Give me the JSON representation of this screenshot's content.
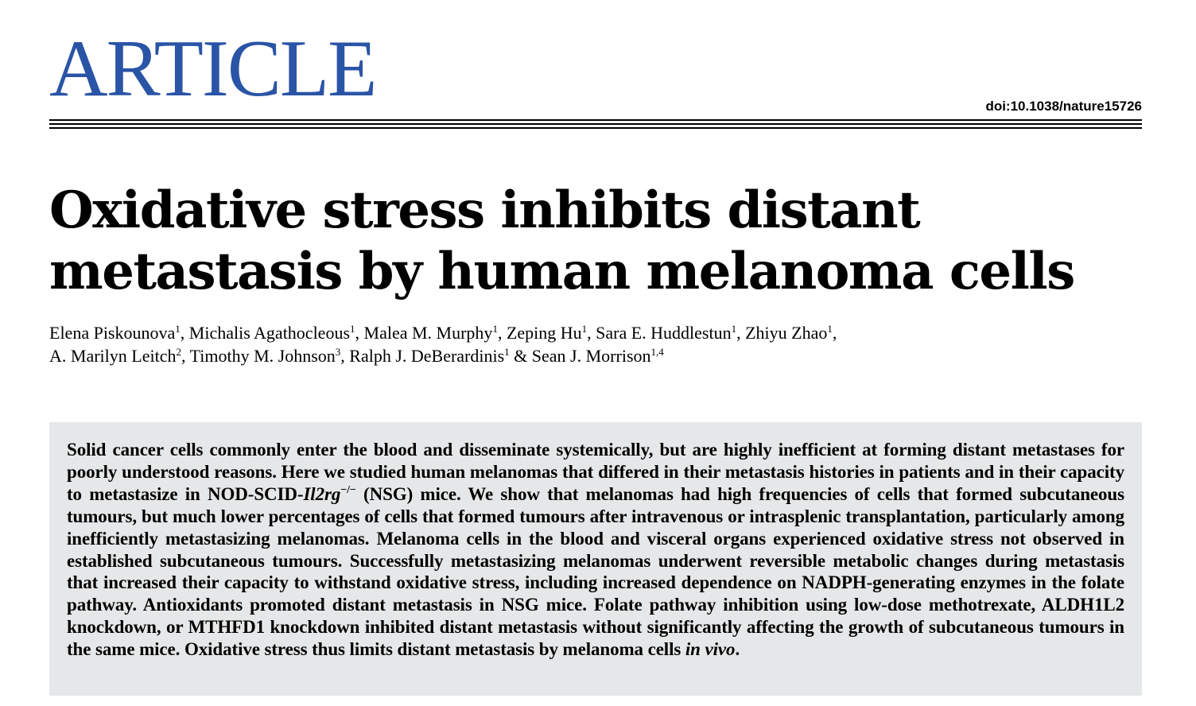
{
  "header": {
    "masthead": "ARTICLE",
    "doi": "doi:10.1038/nature15726"
  },
  "title": "Oxidative stress inhibits distant metastasis by human melanoma cells",
  "authors": [
    {
      "name": "Elena Piskounova",
      "aff": "1",
      "sep": ", "
    },
    {
      "name": "Michalis Agathocleous",
      "aff": "1",
      "sep": ", "
    },
    {
      "name": "Malea M. Murphy",
      "aff": "1",
      "sep": ", "
    },
    {
      "name": "Zeping Hu",
      "aff": "1",
      "sep": ", "
    },
    {
      "name": "Sara E. Huddlestun",
      "aff": "1",
      "sep": ", "
    },
    {
      "name": "Zhiyu Zhao",
      "aff": "1",
      "sep": ","
    },
    {
      "name": "A. Marilyn Leitch",
      "aff": "2",
      "sep": ", "
    },
    {
      "name": "Timothy M. Johnson",
      "aff": "3",
      "sep": ", "
    },
    {
      "name": "Ralph J. DeBerardinis",
      "aff": "1",
      "sep": " & "
    },
    {
      "name": "Sean J. Morrison",
      "aff": "1,4",
      "sep": ""
    }
  ],
  "abstract": {
    "part1": "Solid cancer cells commonly enter the blood and disseminate systemically, but are highly inefficient at forming distant metastases for poorly understood reasons. Here we studied human melanomas that differed in their metastasis histories in patients and in their capacity to metastasize in NOD-SCID-",
    "gene": "Il2rg",
    "gene_sup": "−/−",
    "part2": " (NSG) mice. We show that melanomas had high frequencies of cells that formed subcutaneous tumours, but much lower percentages of cells that formed tumours after intravenous or intrasplenic transplantation, particularly among inefficiently metastasizing melanomas. Melanoma cells in the blood and visceral organs experienced oxidative stress not observed in established subcutaneous tumours. Successfully metastasizing melanomas underwent reversible metabolic changes during metastasis that increased their capacity to withstand oxidative stress, including increased dependence on NADPH-generating enzymes in the folate pathway. Antioxidants promoted distant metastasis in NSG mice. Folate pathway inhibition using low-dose methotrexate, ALDH1L2 knockdown, or MTHFD1 knockdown inhibited distant metastasis without significantly affecting the growth of subcutaneous tumours in the same mice. Oxidative stress thus limits distant metastasis by melanoma cells ",
    "in_vivo": "in vivo",
    "end": "."
  },
  "colors": {
    "masthead": "#2a54a6",
    "abstract_bg": "#e6e7e8"
  }
}
